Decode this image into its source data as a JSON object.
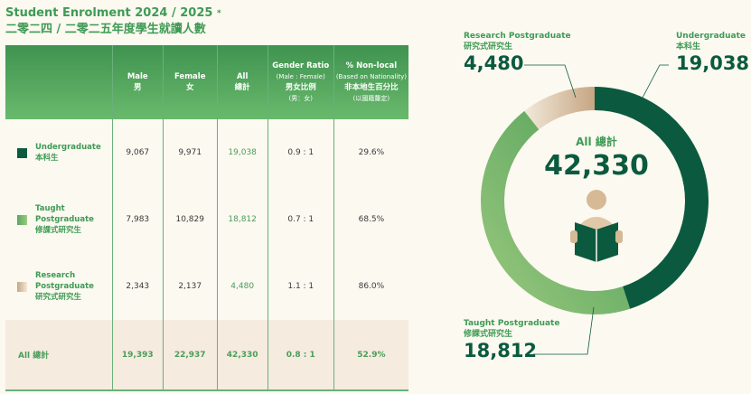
{
  "title": {
    "en": "Student Enrolment 2024 / 2025",
    "asterisk": "*",
    "zh": "二零二四 / 二零二五年度學生就讀人數"
  },
  "table": {
    "headers": [
      {
        "en": "",
        "zh": ""
      },
      {
        "en": "Male",
        "zh": "男"
      },
      {
        "en": "Female",
        "zh": "女"
      },
      {
        "en": "All",
        "zh": "總計"
      },
      {
        "en": "Gender Ratio",
        "sub": "(Male : Female)",
        "zh": "男女比例",
        "zh_sub": "(男：女)"
      },
      {
        "en": "% Non-local",
        "sub": "(Based on Nationality)",
        "zh": "非本地生百分比",
        "zh_sub": "(以國籍釐定)"
      }
    ],
    "rows": [
      {
        "label_en": "Undergraduate",
        "label_zh": "本科生",
        "color": "#0b5a3f",
        "male": "9,067",
        "female": "9,971",
        "all": "19,038",
        "ratio": "0.9 : 1",
        "nonlocal": "29.6%"
      },
      {
        "label_en": "Taught Postgraduate",
        "label_zh": "修課式研究生",
        "color": "#6fb36a",
        "male": "7,983",
        "female": "10,829",
        "all": "18,812",
        "ratio": "0.7 : 1",
        "nonlocal": "68.5%"
      },
      {
        "label_en": "Research Postgraduate",
        "label_zh": "研究式研究生",
        "color": "#d9bf9f",
        "male": "2,343",
        "female": "2,137",
        "all": "4,480",
        "ratio": "1.1 : 1",
        "nonlocal": "86.0%"
      }
    ],
    "total": {
      "label": "All 總計",
      "male": "19,393",
      "female": "22,937",
      "all": "42,330",
      "ratio": "0.8 : 1",
      "nonlocal": "52.9%"
    }
  },
  "chart_data": {
    "type": "pie",
    "style": "donut",
    "center_label": "All 總計",
    "center_value": "42,330",
    "center_icon": "person-reading-book-icon",
    "slices": [
      {
        "name_en": "Undergraduate",
        "name_zh": "本科生",
        "value": 19038,
        "label": "19,038",
        "color": "#0b5a3f"
      },
      {
        "name_en": "Taught Postgraduate",
        "name_zh": "修課式研究生",
        "value": 18812,
        "label": "18,812",
        "color": "#6fb36a"
      },
      {
        "name_en": "Research Postgraduate",
        "name_zh": "研究式研究生",
        "value": 4480,
        "label": "4,480",
        "color": "#d9bf9f"
      }
    ]
  }
}
